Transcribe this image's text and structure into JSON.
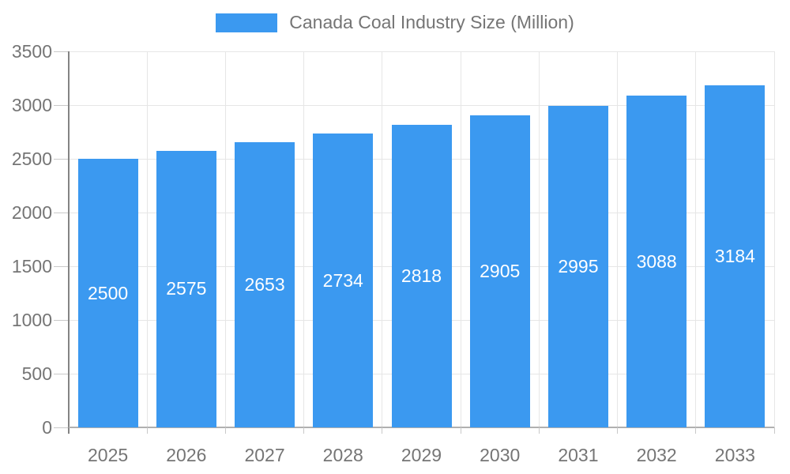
{
  "colors": {
    "bar": "#3b99f0",
    "bar_label": "#ffffff",
    "axis_text": "#757575",
    "gridline": "#e6e6e6",
    "tick": "#c9c9c9",
    "y_axis_line": "#848484",
    "x_axis_line": "#b0b0b0",
    "background": "#ffffff"
  },
  "legend": {
    "label": "Canada Coal Industry Size (Million)",
    "swatch_color": "#3b99f0"
  },
  "chart_data": {
    "type": "bar",
    "title": "Canada Coal Industry Size (Million)",
    "categories": [
      "2025",
      "2026",
      "2027",
      "2028",
      "2029",
      "2030",
      "2031",
      "2032",
      "2033"
    ],
    "values": [
      2500,
      2575,
      2653,
      2734,
      2818,
      2905,
      2995,
      3088,
      3184
    ],
    "xlabel": "",
    "ylabel": "",
    "ylim": [
      0,
      3500
    ],
    "yticks": [
      0,
      500,
      1000,
      1500,
      2000,
      2500,
      3000,
      3500
    ],
    "grid": true,
    "legend_position": "top",
    "bar_value_labels": "inside-center"
  }
}
